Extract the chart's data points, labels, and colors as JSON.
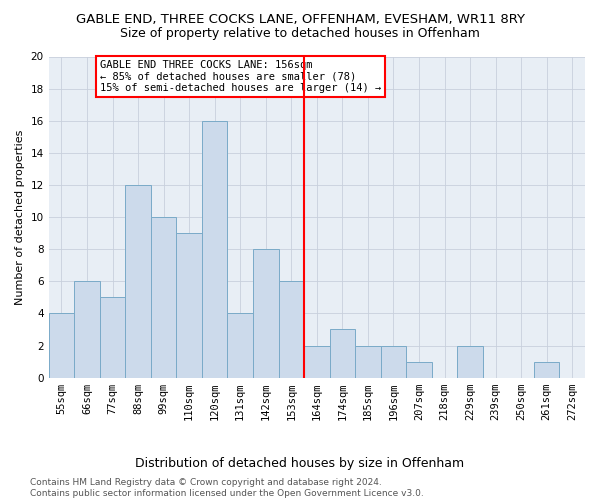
{
  "title": "GABLE END, THREE COCKS LANE, OFFENHAM, EVESHAM, WR11 8RY",
  "subtitle": "Size of property relative to detached houses in Offenham",
  "xlabel": "Distribution of detached houses by size in Offenham",
  "ylabel": "Number of detached properties",
  "categories": [
    "55sqm",
    "66sqm",
    "77sqm",
    "88sqm",
    "99sqm",
    "110sqm",
    "120sqm",
    "131sqm",
    "142sqm",
    "153sqm",
    "164sqm",
    "174sqm",
    "185sqm",
    "196sqm",
    "207sqm",
    "218sqm",
    "229sqm",
    "239sqm",
    "250sqm",
    "261sqm",
    "272sqm"
  ],
  "values": [
    4,
    6,
    5,
    12,
    10,
    9,
    16,
    4,
    8,
    6,
    2,
    3,
    2,
    2,
    1,
    0,
    2,
    0,
    0,
    1,
    0
  ],
  "bar_color": "#ccdaeb",
  "bar_edge_color": "#7aaac8",
  "property_line_x": 9.5,
  "annotation_text": "GABLE END THREE COCKS LANE: 156sqm\n← 85% of detached houses are smaller (78)\n15% of semi-detached houses are larger (14) →",
  "annotation_box_color": "white",
  "annotation_box_edge": "red",
  "line_color": "red",
  "ylim": [
    0,
    20
  ],
  "yticks": [
    0,
    2,
    4,
    6,
    8,
    10,
    12,
    14,
    16,
    18,
    20
  ],
  "footer": "Contains HM Land Registry data © Crown copyright and database right 2024.\nContains public sector information licensed under the Open Government Licence v3.0.",
  "title_fontsize": 9.5,
  "subtitle_fontsize": 9,
  "xlabel_fontsize": 9,
  "ylabel_fontsize": 8,
  "tick_fontsize": 7.5,
  "annotation_fontsize": 7.5,
  "footer_fontsize": 6.5,
  "bg_color": "#e8eef5"
}
